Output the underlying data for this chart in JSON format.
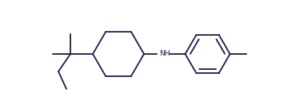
{
  "line_color": "#1a1a4a",
  "nh_color": "#1a1a4a",
  "background": "#ffffff",
  "line_width": 1.3,
  "figsize": [
    3.85,
    1.36
  ],
  "dpi": 100,
  "xlim": [
    0,
    3.85
  ],
  "ylim": [
    0,
    1.36
  ]
}
